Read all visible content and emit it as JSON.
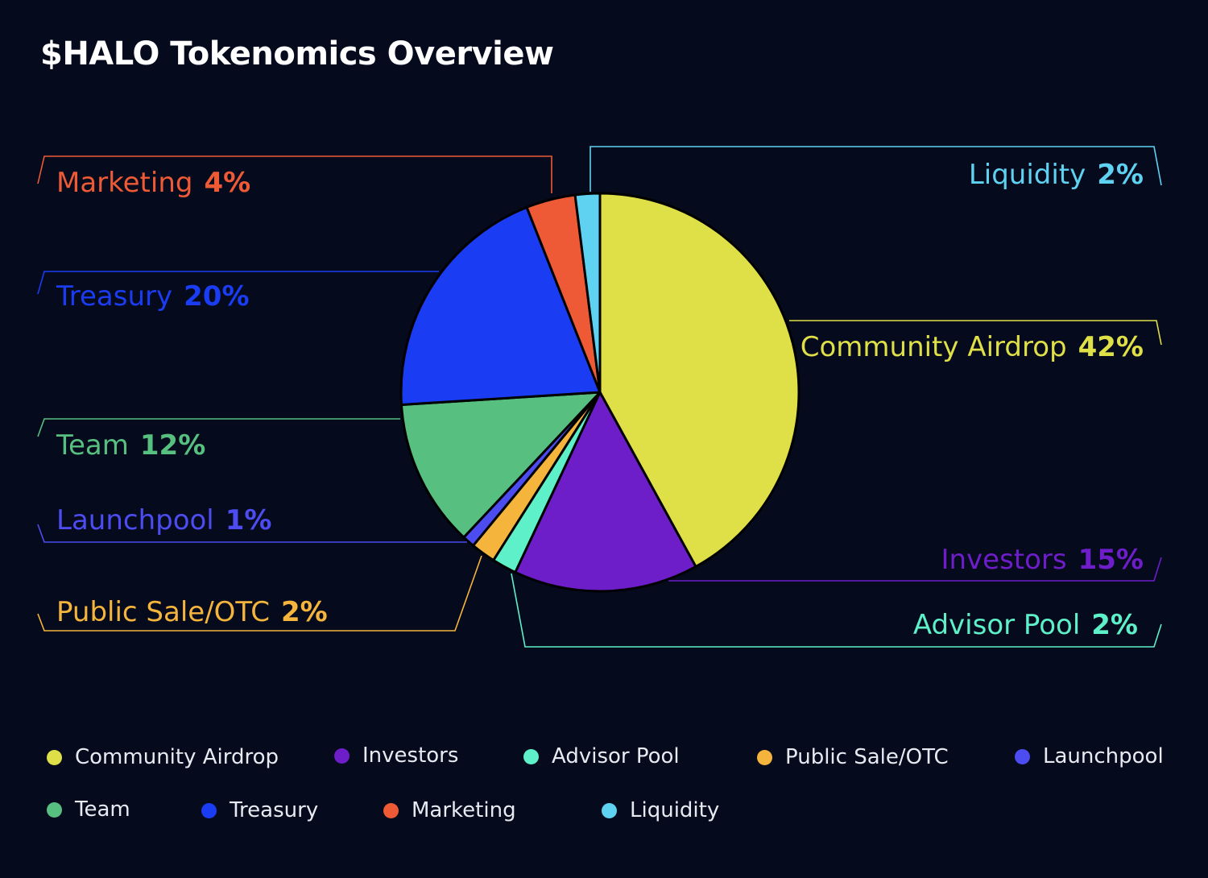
{
  "title": "$HALO Tokenomics Overview",
  "chart_data": {
    "type": "pie",
    "title": "$HALO Tokenomics Overview",
    "slices": [
      {
        "label": "Community Airdrop",
        "value": 42,
        "display": "42%",
        "color": "#dfdf48"
      },
      {
        "label": "Investors",
        "value": 15,
        "display": "15%",
        "color": "#6d1ec9"
      },
      {
        "label": "Advisor Pool",
        "value": 2,
        "display": "2%",
        "color": "#5ef0c8"
      },
      {
        "label": "Public Sale/OTC",
        "value": 2,
        "display": "2%",
        "color": "#f5b53c"
      },
      {
        "label": "Launchpool",
        "value": 1,
        "display": "1%",
        "color": "#4c4cf0"
      },
      {
        "label": "Team",
        "value": 12,
        "display": "12%",
        "color": "#57c080"
      },
      {
        "label": "Treasury",
        "value": 20,
        "display": "20%",
        "color": "#1a3cf2"
      },
      {
        "label": "Marketing",
        "value": 4,
        "display": "4%",
        "color": "#ed5a35"
      },
      {
        "label": "Liquidity",
        "value": 2,
        "display": "2%",
        "color": "#5fd2f2"
      }
    ],
    "legend": {
      "position": "bottom"
    }
  }
}
